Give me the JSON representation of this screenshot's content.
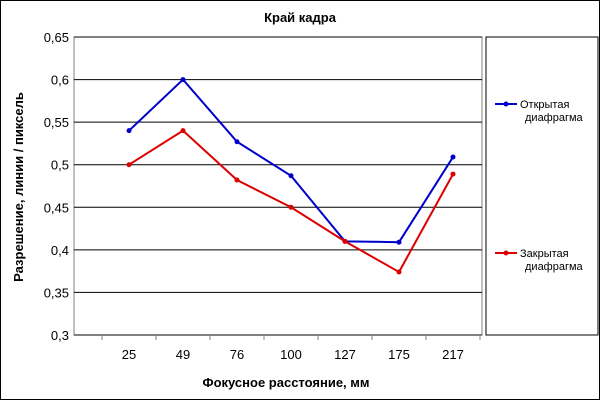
{
  "chart_data": {
    "type": "line",
    "title": "Край кадра",
    "xlabel": "Фокусное расстояние, мм",
    "ylabel": "Разрешение, линии / пиксель",
    "categories": [
      "25",
      "49",
      "76",
      "100",
      "127",
      "175",
      "217"
    ],
    "ylim": [
      0.3,
      0.65
    ],
    "yticks": [
      "0,3",
      "0,35",
      "0,4",
      "0,45",
      "0,5",
      "0,55",
      "0,6",
      "0,65"
    ],
    "grid": true,
    "legend_position": "right",
    "series": [
      {
        "name": "Открытая диафрагма",
        "legend_lines": [
          "Открытая",
          "диафрагма"
        ],
        "color": "#0000cc",
        "values": [
          0.54,
          0.6,
          0.527,
          0.487,
          0.41,
          0.409,
          0.509
        ]
      },
      {
        "name": "Закрытая диафрагма",
        "legend_lines": [
          "Закрытая",
          "диафрагма"
        ],
        "color": "#dd0000",
        "values": [
          0.5,
          0.54,
          0.482,
          0.45,
          0.41,
          0.374,
          0.489
        ]
      }
    ]
  }
}
